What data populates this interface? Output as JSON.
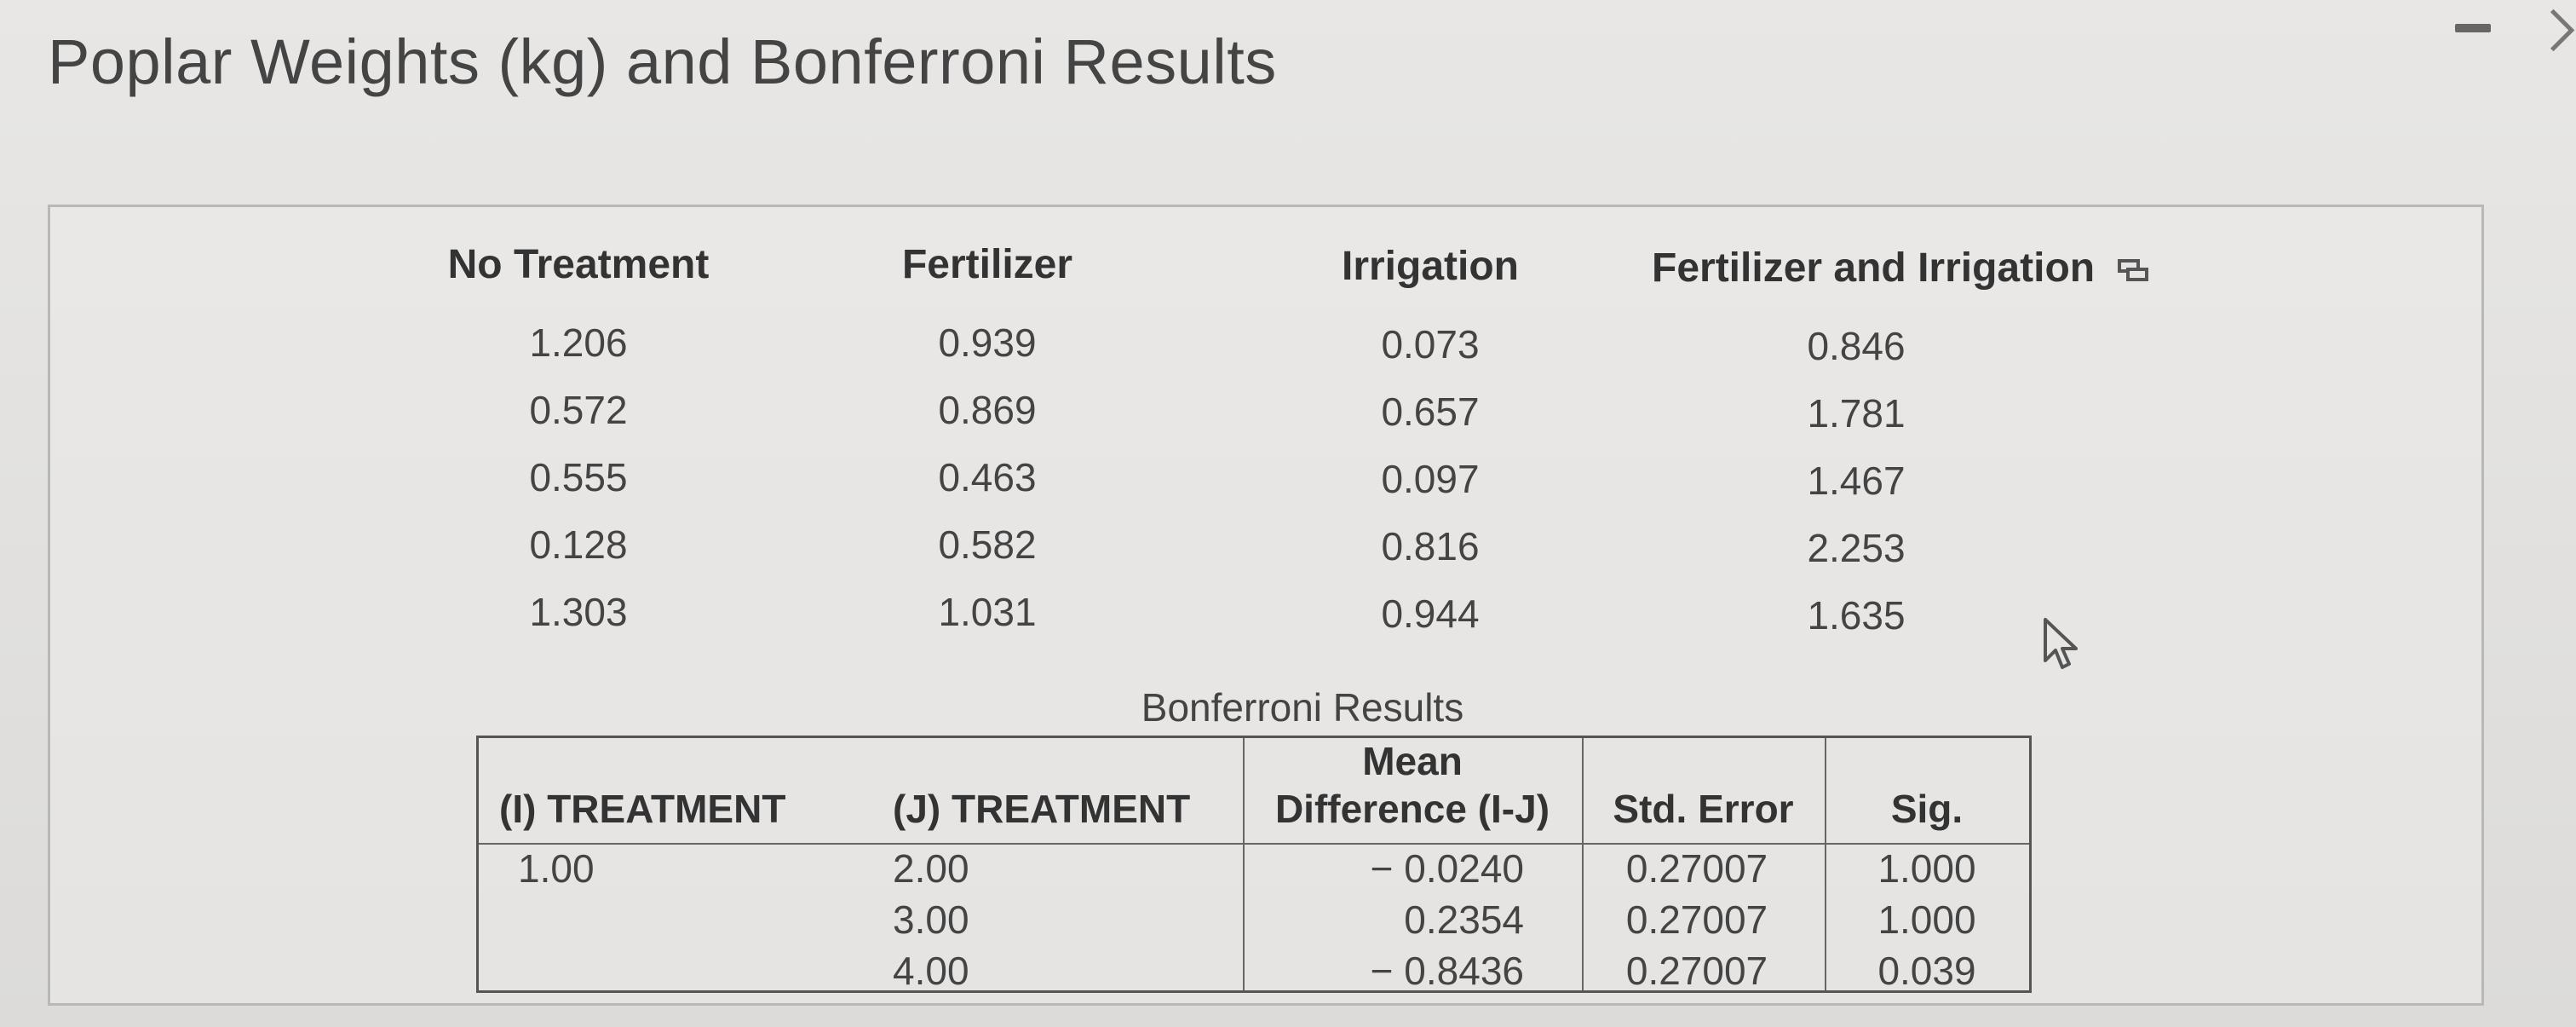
{
  "title": "Poplar Weights (kg) and Bonferroni Results",
  "weights_table": {
    "columns": [
      {
        "header": "No Treatment",
        "values": [
          "1.206",
          "0.572",
          "0.555",
          "0.128",
          "1.303"
        ]
      },
      {
        "header": "Fertilizer",
        "values": [
          "0.939",
          "0.869",
          "0.463",
          "0.582",
          "1.031"
        ]
      },
      {
        "header": "Irrigation",
        "values": [
          "0.073",
          "0.657",
          "0.097",
          "0.816",
          "0.944"
        ]
      },
      {
        "header": "Fertilizer and Irrigation",
        "values": [
          "0.846",
          "1.781",
          "1.467",
          "2.253",
          "1.635"
        ]
      }
    ]
  },
  "bonferroni": {
    "caption": "Bonferroni Results",
    "headers": {
      "i_treatment": "(I) TREATMENT",
      "j_treatment": "(J) TREATMENT",
      "mean_diff_line1": "Mean",
      "mean_diff_line2": "Difference (I-J)",
      "std_error": "Std. Error",
      "sig": "Sig."
    },
    "i_value": "1.00",
    "rows": [
      {
        "j": "2.00",
        "mean_diff": "− 0.0240",
        "std_error": "0.27007",
        "sig": "1.000"
      },
      {
        "j": "3.00",
        "mean_diff": "0.2354",
        "std_error": "0.27007",
        "sig": "1.000"
      },
      {
        "j": "4.00",
        "mean_diff": "− 0.8436",
        "std_error": "0.27007",
        "sig": "0.039"
      }
    ]
  },
  "icons": {
    "expand": "expand-icon",
    "cursor": "cursor-arrow-icon",
    "minimize": "minimize-dash-icon",
    "chevron": "chevron-right-icon"
  }
}
